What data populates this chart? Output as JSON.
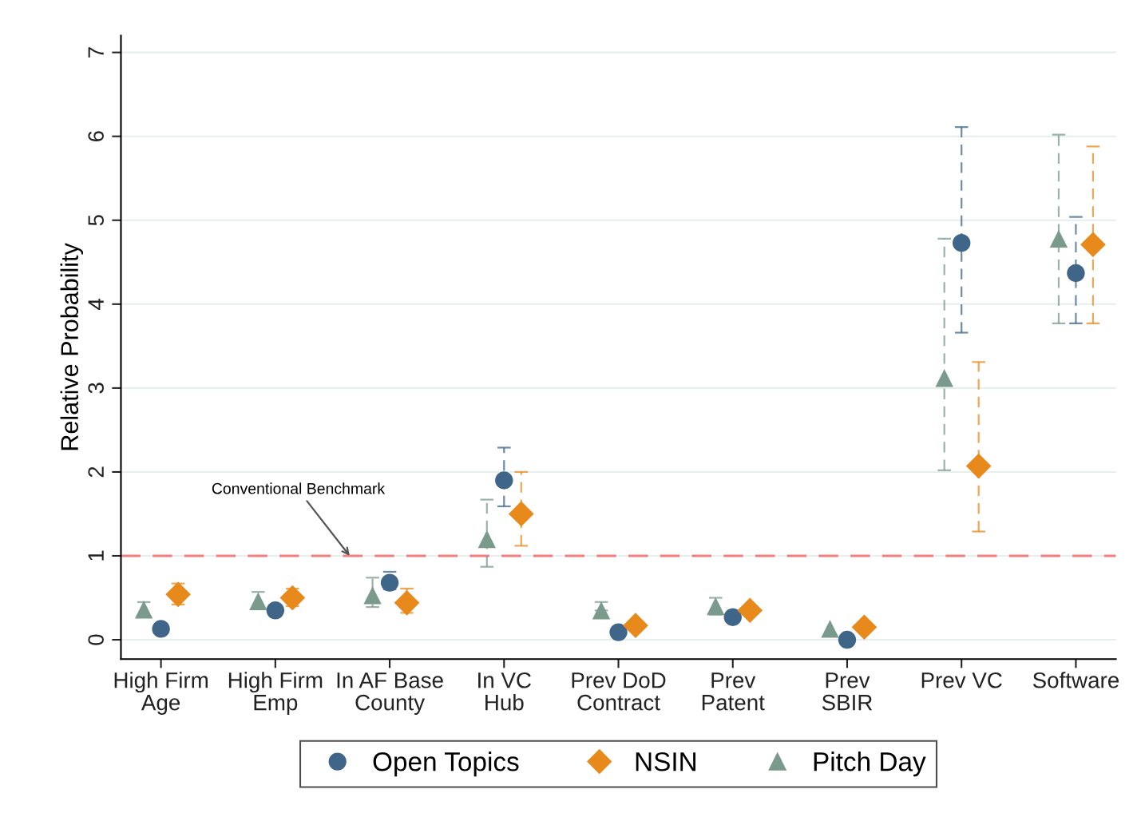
{
  "chart_data": {
    "type": "scatter",
    "ylabel": "Relative Probability",
    "categories": [
      "High Firm\nAge",
      "High Firm\nEmp",
      "In AF Base\nCounty",
      "In VC\nHub",
      "Prev DoD\nContract",
      "Prev\nPatent",
      "Prev\nSBIR",
      "Prev VC",
      "Software"
    ],
    "series": [
      {
        "name": "Open Topics",
        "color": "#3f6689",
        "marker": "circle",
        "values": [
          0.13,
          0.35,
          0.68,
          1.9,
          0.09,
          0.27,
          0.0,
          4.73,
          4.37
        ],
        "errors": [
          null,
          null,
          [
            0.6,
            0.81
          ],
          [
            1.59,
            2.29
          ],
          null,
          null,
          null,
          [
            3.66,
            6.11
          ],
          [
            3.77,
            5.04
          ]
        ]
      },
      {
        "name": "NSIN",
        "color": "#e8891c",
        "marker": "diamond",
        "values": [
          0.54,
          0.5,
          0.44,
          1.5,
          0.17,
          0.35,
          0.15,
          2.07,
          4.71
        ],
        "errors": [
          [
            0.42,
            0.67
          ],
          [
            0.4,
            0.61
          ],
          [
            0.32,
            0.61
          ],
          [
            1.12,
            2.0
          ],
          null,
          null,
          null,
          [
            1.29,
            3.31
          ],
          [
            3.77,
            5.88
          ]
        ]
      },
      {
        "name": "Pitch Day",
        "color": "#7a9a8b",
        "marker": "triangle",
        "values": [
          0.36,
          0.46,
          0.53,
          1.2,
          0.35,
          0.4,
          0.13,
          3.12,
          4.78
        ],
        "errors": [
          [
            0.28,
            0.45
          ],
          [
            0.37,
            0.57
          ],
          [
            0.39,
            0.74
          ],
          [
            0.87,
            1.67
          ],
          [
            0.35,
            0.45
          ],
          [
            0.3,
            0.5
          ],
          null,
          [
            2.02,
            4.78
          ],
          [
            3.77,
            6.02
          ]
        ]
      }
    ],
    "ylim": [
      -0.23,
      7.2
    ],
    "yticks": [
      0,
      1,
      2,
      3,
      4,
      5,
      6,
      7
    ],
    "grid": "y",
    "legend": "bottom",
    "ref_lines": [
      {
        "axis": "y",
        "value": 1,
        "label": "Conventional Benchmark",
        "color": "#f08080",
        "line_style": "dashed"
      }
    ]
  }
}
